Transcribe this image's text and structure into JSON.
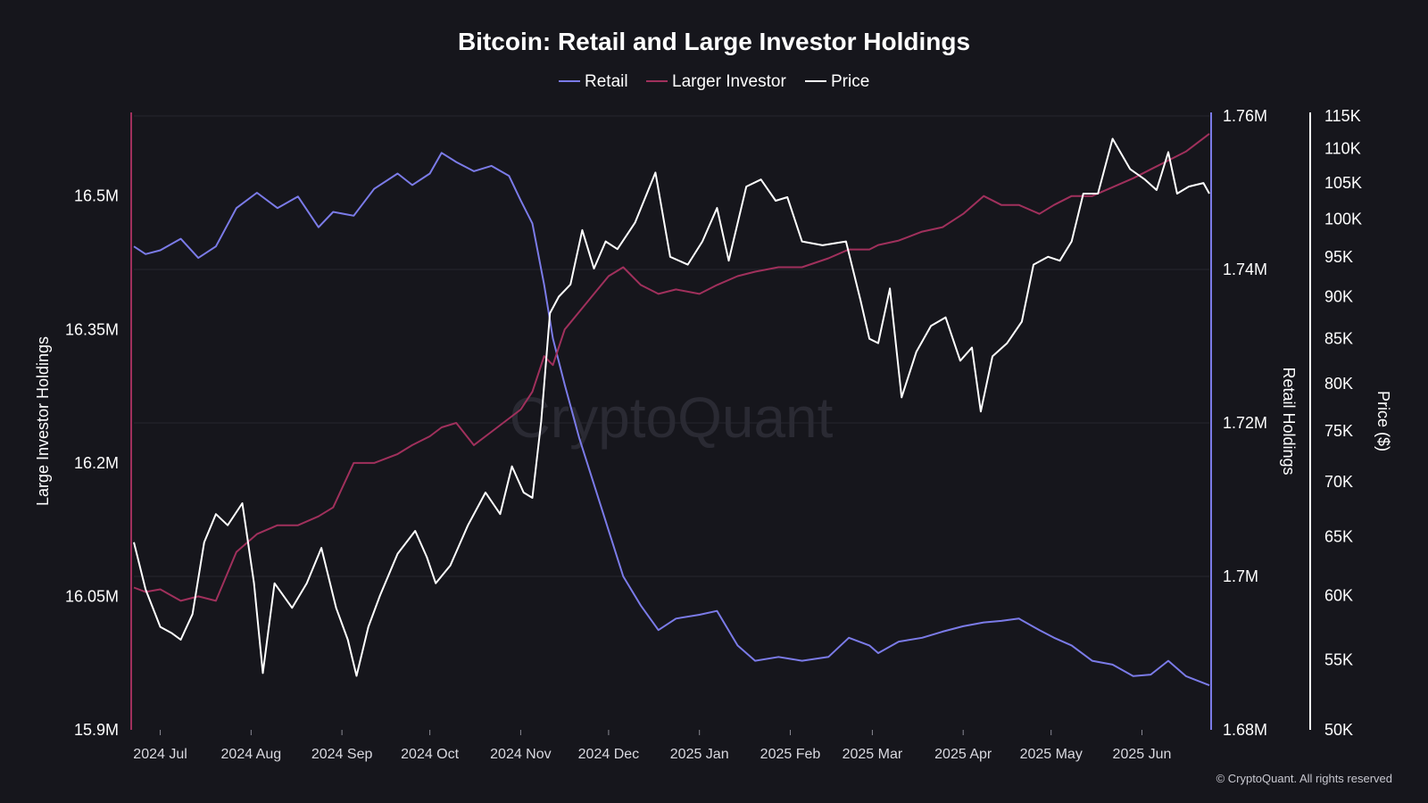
{
  "chart_data": {
    "type": "line",
    "title": "Bitcoin: Retail and Large Investor Holdings",
    "legend": {
      "placement": "top-center",
      "entries": [
        "Retail",
        "Larger Investor",
        "Price"
      ]
    },
    "watermark": "CryptoQuant",
    "copyright": "© CryptoQuant. All rights reserved",
    "grid": true,
    "x_axis": {
      "range": [
        "2024-06-22",
        "2025-06-24"
      ],
      "ticks": [
        {
          "date": "2024-07-01",
          "label": "2024 Jul"
        },
        {
          "date": "2024-08-01",
          "label": "2024 Aug"
        },
        {
          "date": "2024-09-01",
          "label": "2024 Sep"
        },
        {
          "date": "2024-10-01",
          "label": "2024 Oct"
        },
        {
          "date": "2024-11-01",
          "label": "2024 Nov"
        },
        {
          "date": "2024-12-01",
          "label": "2024 Dec"
        },
        {
          "date": "2025-01-01",
          "label": "2025 Jan"
        },
        {
          "date": "2025-02-01",
          "label": "2025 Feb"
        },
        {
          "date": "2025-03-01",
          "label": "2025 Mar"
        },
        {
          "date": "2025-04-01",
          "label": "2025 Apr"
        },
        {
          "date": "2025-05-01",
          "label": "2025 May"
        },
        {
          "date": "2025-06-01",
          "label": "2025 Jun"
        }
      ]
    },
    "axes": {
      "left": {
        "label": "Large Investor Holdings",
        "color": "#a0305c",
        "min": 15.9,
        "max": 16.59,
        "ticks": [
          {
            "value": 15.9,
            "label": "15.9M"
          },
          {
            "value": 16.05,
            "label": "16.05M"
          },
          {
            "value": 16.2,
            "label": "16.2M"
          },
          {
            "value": 16.35,
            "label": "16.35M"
          },
          {
            "value": 16.5,
            "label": "16.5M"
          }
        ]
      },
      "right": {
        "label": "Retail Holdings",
        "color": "#7b7be8",
        "min": 1.68,
        "max": 1.76,
        "ticks": [
          {
            "value": 1.68,
            "label": "1.68M"
          },
          {
            "value": 1.7,
            "label": "1.7M"
          },
          {
            "value": 1.72,
            "label": "1.72M"
          },
          {
            "value": 1.74,
            "label": "1.74M"
          },
          {
            "value": 1.76,
            "label": "1.76M"
          }
        ]
      },
      "price": {
        "label": "Price ($)",
        "color": "#ffffff",
        "scale": "log",
        "min": 50000,
        "max": 115000,
        "ticks": [
          {
            "value": 50000,
            "label": "50K"
          },
          {
            "value": 55000,
            "label": "55K"
          },
          {
            "value": 60000,
            "label": "60K"
          },
          {
            "value": 65000,
            "label": "65K"
          },
          {
            "value": 70000,
            "label": "70K"
          },
          {
            "value": 75000,
            "label": "75K"
          },
          {
            "value": 80000,
            "label": "80K"
          },
          {
            "value": 85000,
            "label": "85K"
          },
          {
            "value": 90000,
            "label": "90K"
          },
          {
            "value": 95000,
            "label": "95K"
          },
          {
            "value": 100000,
            "label": "100K"
          },
          {
            "value": 105000,
            "label": "105K"
          },
          {
            "value": 110000,
            "label": "110K"
          },
          {
            "value": 115000,
            "label": "115K"
          }
        ]
      }
    },
    "series": [
      {
        "name": "Retail",
        "axis": "right",
        "color": "#7b7be8",
        "x": [
          "2024-06-22",
          "2024-06-26",
          "2024-07-01",
          "2024-07-08",
          "2024-07-14",
          "2024-07-20",
          "2024-07-27",
          "2024-08-03",
          "2024-08-10",
          "2024-08-17",
          "2024-08-24",
          "2024-08-29",
          "2024-09-05",
          "2024-09-12",
          "2024-09-20",
          "2024-09-25",
          "2024-10-01",
          "2024-10-05",
          "2024-10-10",
          "2024-10-16",
          "2024-10-22",
          "2024-10-28",
          "2024-11-01",
          "2024-11-05",
          "2024-11-09",
          "2024-11-12",
          "2024-11-16",
          "2024-11-21",
          "2024-11-26",
          "2024-12-01",
          "2024-12-06",
          "2024-12-12",
          "2024-12-18",
          "2024-12-24",
          "2025-01-01",
          "2025-01-07",
          "2025-01-14",
          "2025-01-20",
          "2025-01-28",
          "2025-02-05",
          "2025-02-14",
          "2025-02-21",
          "2025-02-28",
          "2025-03-03",
          "2025-03-10",
          "2025-03-18",
          "2025-03-25",
          "2025-04-01",
          "2025-04-08",
          "2025-04-14",
          "2025-04-20",
          "2025-04-27",
          "2025-05-02",
          "2025-05-08",
          "2025-05-15",
          "2025-05-22",
          "2025-05-29",
          "2025-06-04",
          "2025-06-10",
          "2025-06-16",
          "2025-06-24"
        ],
        "y": [
          1.743,
          1.742,
          1.7425,
          1.744,
          1.7415,
          1.743,
          1.748,
          1.75,
          1.748,
          1.7495,
          1.7455,
          1.7475,
          1.747,
          1.7505,
          1.7525,
          1.751,
          1.7525,
          1.7552,
          1.754,
          1.7528,
          1.7535,
          1.7522,
          1.749,
          1.746,
          1.738,
          1.731,
          1.725,
          1.718,
          1.712,
          1.706,
          1.7,
          1.6962,
          1.693,
          1.6945,
          1.695,
          1.6955,
          1.691,
          1.689,
          1.6895,
          1.689,
          1.6895,
          1.692,
          1.691,
          1.69,
          1.6915,
          1.692,
          1.6928,
          1.6935,
          1.694,
          1.6942,
          1.6945,
          1.693,
          1.692,
          1.691,
          1.689,
          1.6885,
          1.687,
          1.6872,
          1.689,
          1.687,
          1.6858
        ]
      },
      {
        "name": "Larger Investor",
        "axis": "left",
        "color": "#a0305c",
        "x": [
          "2024-06-22",
          "2024-06-26",
          "2024-07-01",
          "2024-07-08",
          "2024-07-14",
          "2024-07-20",
          "2024-07-27",
          "2024-08-03",
          "2024-08-10",
          "2024-08-17",
          "2024-08-24",
          "2024-08-29",
          "2024-09-05",
          "2024-09-12",
          "2024-09-20",
          "2024-09-25",
          "2024-10-01",
          "2024-10-05",
          "2024-10-10",
          "2024-10-16",
          "2024-10-22",
          "2024-10-28",
          "2024-11-01",
          "2024-11-05",
          "2024-11-09",
          "2024-11-12",
          "2024-11-16",
          "2024-11-21",
          "2024-11-26",
          "2024-12-01",
          "2024-12-06",
          "2024-12-12",
          "2024-12-18",
          "2024-12-24",
          "2025-01-01",
          "2025-01-07",
          "2025-01-14",
          "2025-01-20",
          "2025-01-28",
          "2025-02-05",
          "2025-02-14",
          "2025-02-21",
          "2025-02-28",
          "2025-03-03",
          "2025-03-10",
          "2025-03-18",
          "2025-03-25",
          "2025-04-01",
          "2025-04-08",
          "2025-04-14",
          "2025-04-20",
          "2025-04-27",
          "2025-05-02",
          "2025-05-08",
          "2025-05-15",
          "2025-05-22",
          "2025-05-29",
          "2025-06-04",
          "2025-06-10",
          "2025-06-16",
          "2025-06-24"
        ],
        "y": [
          16.06,
          16.055,
          16.058,
          16.045,
          16.05,
          16.045,
          16.1,
          16.12,
          16.13,
          16.13,
          16.14,
          16.15,
          16.2,
          16.2,
          16.21,
          16.22,
          16.23,
          16.24,
          16.245,
          16.22,
          16.235,
          16.25,
          16.26,
          16.28,
          16.32,
          16.31,
          16.35,
          16.37,
          16.39,
          16.41,
          16.42,
          16.4,
          16.39,
          16.395,
          16.39,
          16.4,
          16.41,
          16.415,
          16.42,
          16.42,
          16.43,
          16.44,
          16.44,
          16.445,
          16.45,
          16.46,
          16.465,
          16.48,
          16.5,
          16.49,
          16.49,
          16.48,
          16.49,
          16.5,
          16.5,
          16.51,
          16.52,
          16.53,
          16.54,
          16.55,
          16.57
        ]
      },
      {
        "name": "Price",
        "axis": "price",
        "color": "#ffffff",
        "x": [
          "2024-06-22",
          "2024-06-26",
          "2024-07-01",
          "2024-07-05",
          "2024-07-08",
          "2024-07-12",
          "2024-07-16",
          "2024-07-20",
          "2024-07-24",
          "2024-07-29",
          "2024-08-02",
          "2024-08-05",
          "2024-08-09",
          "2024-08-15",
          "2024-08-20",
          "2024-08-25",
          "2024-08-30",
          "2024-09-03",
          "2024-09-06",
          "2024-09-10",
          "2024-09-14",
          "2024-09-20",
          "2024-09-26",
          "2024-09-30",
          "2024-10-03",
          "2024-10-08",
          "2024-10-14",
          "2024-10-20",
          "2024-10-25",
          "2024-10-29",
          "2024-11-02",
          "2024-11-05",
          "2024-11-08",
          "2024-11-11",
          "2024-11-14",
          "2024-11-18",
          "2024-11-22",
          "2024-11-26",
          "2024-11-30",
          "2024-12-04",
          "2024-12-10",
          "2024-12-17",
          "2024-12-22",
          "2024-12-28",
          "2025-01-02",
          "2025-01-07",
          "2025-01-11",
          "2025-01-17",
          "2025-01-22",
          "2025-01-27",
          "2025-01-31",
          "2025-02-05",
          "2025-02-12",
          "2025-02-20",
          "2025-02-25",
          "2025-02-28",
          "2025-03-03",
          "2025-03-07",
          "2025-03-11",
          "2025-03-16",
          "2025-03-21",
          "2025-03-26",
          "2025-03-31",
          "2025-04-04",
          "2025-04-07",
          "2025-04-11",
          "2025-04-16",
          "2025-04-21",
          "2025-04-25",
          "2025-04-30",
          "2025-05-04",
          "2025-05-08",
          "2025-05-12",
          "2025-05-17",
          "2025-05-22",
          "2025-05-28",
          "2025-06-02",
          "2025-06-06",
          "2025-06-10",
          "2025-06-13",
          "2025-06-17",
          "2025-06-22",
          "2025-06-24"
        ],
        "y": [
          64500,
          60500,
          57500,
          57000,
          56500,
          58500,
          64500,
          67000,
          66000,
          68000,
          61000,
          54000,
          61000,
          59000,
          61000,
          64000,
          59000,
          56500,
          53800,
          57500,
          60000,
          63500,
          65500,
          63200,
          61000,
          62500,
          66000,
          69000,
          67000,
          71500,
          69000,
          68500,
          76000,
          88000,
          90000,
          91500,
          98500,
          93500,
          97000,
          96000,
          99500,
          106500,
          95000,
          94000,
          97000,
          101500,
          94500,
          104500,
          105500,
          102500,
          103000,
          97000,
          96500,
          97000,
          89500,
          85000,
          84500,
          91000,
          78500,
          83500,
          86500,
          87500,
          82500,
          84000,
          77000,
          83000,
          84500,
          87000,
          94000,
          95000,
          94500,
          97000,
          103500,
          103500,
          111500,
          107000,
          105500,
          104000,
          109500,
          103500,
          104500,
          105000,
          103500
        ]
      }
    ]
  }
}
